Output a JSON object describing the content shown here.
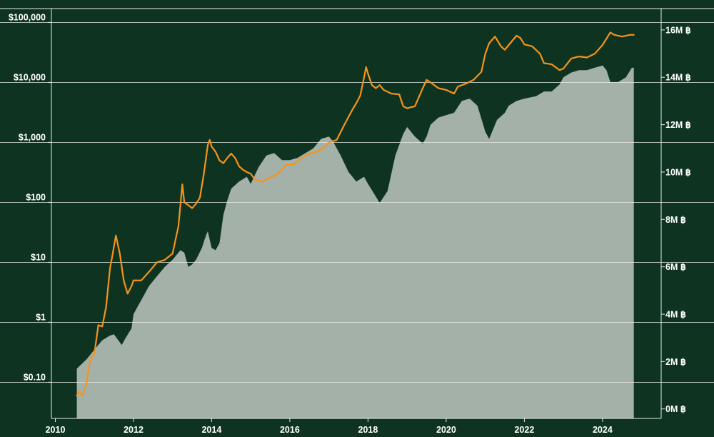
{
  "chart_data": {
    "type": "line",
    "title": "",
    "xlabel": "",
    "ylabel_left": "",
    "ylabel_right": "",
    "grid": true,
    "colors": {
      "background": "#0e3421",
      "price_line": "#f7931a",
      "supply_area": "#a3b1a9",
      "grid": "#e8ece9",
      "text": "#ffffff"
    },
    "x_axis": {
      "range": [
        2009.9,
        2025.5
      ],
      "ticks": [
        2010,
        2012,
        2014,
        2016,
        2018,
        2020,
        2022,
        2024
      ],
      "tick_labels": [
        "2010",
        "2012",
        "2014",
        "2016",
        "2018",
        "2020",
        "2022",
        "2024"
      ]
    },
    "y_left": {
      "scale": "log",
      "range": [
        0.025,
        170000
      ],
      "ticks": [
        0.1,
        1,
        10,
        100,
        1000,
        10000,
        100000
      ],
      "tick_labels": [
        "$0.10",
        "$1",
        "$10",
        "$100",
        "$1,000",
        "$10,000",
        "$100,000"
      ]
    },
    "y_right": {
      "scale": "linear",
      "unit": "BTC",
      "range": [
        -0.4,
        16.9
      ],
      "ticks": [
        0,
        2,
        4,
        6,
        8,
        10,
        12,
        14,
        16
      ],
      "tick_labels": [
        "0M ฿",
        "2M ฿",
        "4M ฿",
        "6M ฿",
        "8M ฿",
        "10M ฿",
        "12M ฿",
        "14M ฿",
        "16M ฿"
      ]
    },
    "series": [
      {
        "axis": "left",
        "style": "line",
        "x": [
          2010.55,
          2010.6,
          2010.7,
          2010.8,
          2010.9,
          2011.0,
          2011.1,
          2011.2,
          2011.3,
          2011.4,
          2011.45,
          2011.55,
          2011.65,
          2011.75,
          2011.85,
          2011.95,
          2012.0,
          2012.2,
          2012.4,
          2012.6,
          2012.8,
          2013.0,
          2013.15,
          2013.25,
          2013.3,
          2013.4,
          2013.5,
          2013.6,
          2013.7,
          2013.8,
          2013.9,
          2013.95,
          2014.0,
          2014.1,
          2014.2,
          2014.3,
          2014.4,
          2014.5,
          2014.6,
          2014.7,
          2014.8,
          2014.9,
          2015.0,
          2015.1,
          2015.3,
          2015.5,
          2015.7,
          2015.9,
          2016.1,
          2016.3,
          2016.5,
          2016.7,
          2016.9,
          2017.0,
          2017.2,
          2017.4,
          2017.6,
          2017.7,
          2017.8,
          2017.9,
          2017.95,
          2018.0,
          2018.1,
          2018.2,
          2018.3,
          2018.4,
          2018.6,
          2018.8,
          2018.9,
          2019.0,
          2019.2,
          2019.4,
          2019.5,
          2019.6,
          2019.8,
          2020.0,
          2020.2,
          2020.3,
          2020.5,
          2020.7,
          2020.9,
          2021.0,
          2021.1,
          2021.25,
          2021.4,
          2021.5,
          2021.6,
          2021.8,
          2021.9,
          2022.0,
          2022.2,
          2022.4,
          2022.5,
          2022.7,
          2022.9,
          2023.0,
          2023.2,
          2023.4,
          2023.6,
          2023.8,
          2024.0,
          2024.2,
          2024.3,
          2024.5,
          2024.7,
          2024.8
        ],
        "values": [
          0.06,
          0.07,
          0.06,
          0.1,
          0.25,
          0.3,
          0.9,
          0.85,
          1.8,
          8,
          12,
          28,
          14,
          5,
          3,
          4,
          5,
          5,
          7,
          10,
          11,
          14,
          40,
          200,
          100,
          90,
          80,
          95,
          120,
          300,
          900,
          1100,
          850,
          700,
          500,
          450,
          550,
          650,
          550,
          400,
          350,
          320,
          300,
          240,
          220,
          260,
          300,
          420,
          430,
          550,
          650,
          700,
          850,
          1000,
          1100,
          2000,
          3500,
          4500,
          6000,
          12000,
          18000,
          14000,
          9000,
          8000,
          9000,
          7500,
          6500,
          6300,
          4000,
          3700,
          4000,
          8000,
          11000,
          10000,
          8000,
          7500,
          6500,
          8500,
          9500,
          11000,
          15000,
          30000,
          45000,
          58000,
          40000,
          35000,
          42000,
          60000,
          55000,
          43000,
          40000,
          30000,
          21000,
          20000,
          16000,
          17000,
          25000,
          27000,
          26000,
          30000,
          42000,
          68000,
          62000,
          58000,
          62000,
          62000
        ]
      },
      {
        "axis": "right",
        "style": "area",
        "x": [
          2010.55,
          2010.8,
          2011.0,
          2011.1,
          2011.2,
          2011.3,
          2011.4,
          2011.5,
          2011.7,
          2011.8,
          2011.95,
          2012.0,
          2012.2,
          2012.4,
          2012.6,
          2012.8,
          2013.0,
          2013.1,
          2013.2,
          2013.3,
          2013.4,
          2013.5,
          2013.6,
          2013.75,
          2013.85,
          2013.9,
          2014.0,
          2014.1,
          2014.2,
          2014.3,
          2014.4,
          2014.5,
          2014.7,
          2014.9,
          2015.0,
          2015.2,
          2015.4,
          2015.6,
          2015.8,
          2016.0,
          2016.2,
          2016.4,
          2016.6,
          2016.8,
          2017.0,
          2017.1,
          2017.3,
          2017.5,
          2017.7,
          2017.8,
          2017.9,
          2018.0,
          2018.3,
          2018.5,
          2018.7,
          2018.9,
          2019.0,
          2019.2,
          2019.4,
          2019.5,
          2019.6,
          2019.8,
          2020.0,
          2020.2,
          2020.4,
          2020.6,
          2020.8,
          2021.0,
          2021.1,
          2021.3,
          2021.5,
          2021.6,
          2021.8,
          2022.0,
          2022.3,
          2022.5,
          2022.7,
          2022.9,
          2023.0,
          2023.2,
          2023.4,
          2023.6,
          2023.8,
          2024.0,
          2024.1,
          2024.2,
          2024.4,
          2024.6,
          2024.75,
          2024.8
        ],
        "values": [
          1.7,
          2.1,
          2.5,
          2.7,
          2.9,
          3.0,
          3.1,
          3.15,
          2.7,
          3.0,
          3.4,
          4.0,
          4.6,
          5.2,
          5.6,
          6.0,
          6.3,
          6.5,
          6.7,
          6.6,
          6.0,
          6.1,
          6.3,
          6.8,
          7.3,
          7.5,
          6.8,
          6.7,
          7.0,
          8.2,
          8.8,
          9.3,
          9.6,
          9.8,
          9.5,
          10.2,
          10.7,
          10.8,
          10.5,
          10.5,
          10.6,
          10.8,
          11.0,
          11.4,
          11.5,
          11.3,
          10.7,
          10.0,
          9.6,
          9.7,
          9.8,
          9.5,
          8.7,
          9.2,
          10.7,
          11.6,
          11.9,
          11.5,
          11.2,
          11.5,
          12.0,
          12.3,
          12.4,
          12.5,
          13.0,
          13.1,
          12.8,
          11.7,
          11.4,
          12.2,
          12.5,
          12.8,
          13.0,
          13.1,
          13.2,
          13.4,
          13.4,
          13.7,
          14.0,
          14.2,
          14.3,
          14.3,
          14.4,
          14.5,
          14.3,
          13.8,
          13.8,
          14.0,
          14.4,
          14.4
        ]
      }
    ]
  }
}
